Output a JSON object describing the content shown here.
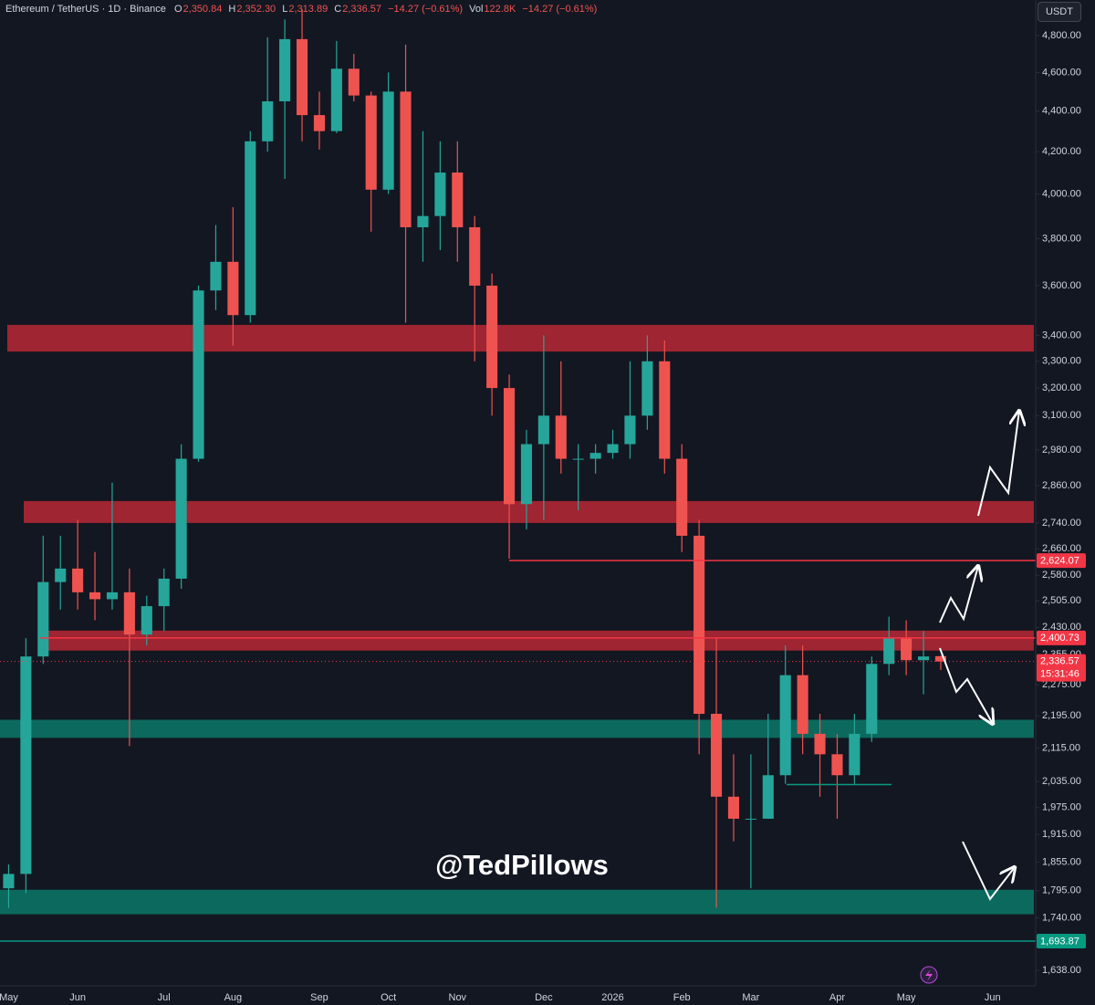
{
  "header": {
    "symbol": "Ethereum / TetherUS · 1D · Binance",
    "ohlc": [
      {
        "key": "O",
        "value": "2,350.84"
      },
      {
        "key": "H",
        "value": "2,352.30"
      },
      {
        "key": "L",
        "value": "2,313.89"
      },
      {
        "key": "C",
        "value": "2,336.57"
      }
    ],
    "change": "−14.27 (−0.61%)",
    "volume": {
      "key": "Vol",
      "value": "122.8K",
      "change": "−14.27 (−0.61%)"
    },
    "currency": "USDT"
  },
  "chart_data": {
    "type": "candlestick",
    "log_scale": true,
    "categories": [
      "May",
      null,
      null,
      null,
      "Jun",
      null,
      null,
      null,
      null,
      "Jul",
      null,
      null,
      null,
      "Aug",
      null,
      null,
      null,
      null,
      "Sep",
      null,
      null,
      null,
      "Oct",
      null,
      null,
      null,
      "Nov",
      null,
      null,
      null,
      null,
      "Dec",
      null,
      null,
      null,
      "2026",
      null,
      null,
      null,
      "Feb",
      null,
      null,
      null,
      "Mar",
      null,
      null,
      null,
      null,
      "Apr",
      null,
      null,
      null,
      "May",
      null,
      null,
      null,
      null,
      "Jun",
      null,
      null
    ],
    "open": [
      1800,
      1830,
      2350,
      2560,
      2600,
      2530,
      2510,
      2530,
      2410,
      2490,
      2570,
      2950,
      3580,
      3700,
      3480,
      4250,
      4450,
      4780,
      4380,
      4300,
      4620,
      4480,
      4020,
      4500,
      3850,
      3900,
      4100,
      3850,
      3600,
      3200,
      2800,
      3000,
      3100,
      2950,
      2950,
      2970,
      3000,
      3100,
      3300,
      2950,
      2700,
      2200,
      2000,
      1950,
      1950,
      2050,
      2300,
      2150,
      2100,
      2050,
      2150,
      2330,
      2400,
      2340,
      2350.84,
      null,
      null,
      null,
      null,
      null
    ],
    "high": [
      1850,
      2400,
      2700,
      2700,
      2750,
      2650,
      2870,
      2600,
      2520,
      2600,
      3000,
      3600,
      3860,
      3940,
      4300,
      4790,
      4890,
      4950,
      4500,
      4770,
      4700,
      4500,
      4600,
      4750,
      4300,
      4250,
      4250,
      3900,
      3650,
      3250,
      3050,
      3400,
      3300,
      3000,
      3000,
      3050,
      3300,
      3400,
      3380,
      3000,
      2750,
      2400,
      2100,
      2100,
      2200,
      2380,
      2380,
      2200,
      2150,
      2200,
      2350,
      2460,
      2450,
      2420,
      2352.3,
      null,
      null,
      null,
      null,
      null
    ],
    "low": [
      1760,
      1790,
      2330,
      2480,
      2480,
      2450,
      2480,
      2120,
      2380,
      2420,
      2540,
      2940,
      3500,
      3360,
      3450,
      4200,
      4070,
      4250,
      4210,
      4290,
      4450,
      3830,
      4000,
      3450,
      3700,
      3750,
      3700,
      3300,
      3100,
      2630,
      2720,
      2750,
      2900,
      2780,
      2900,
      2950,
      2950,
      3050,
      2900,
      2650,
      2100,
      1760,
      1900,
      1800,
      1950,
      2030,
      2100,
      2000,
      1950,
      2030,
      2130,
      2300,
      2300,
      2250,
      2313.89,
      null,
      null,
      null,
      null,
      null
    ],
    "close": [
      1830,
      2350,
      2560,
      2600,
      2530,
      2510,
      2530,
      2410,
      2490,
      2570,
      2950,
      3580,
      3700,
      3480,
      4250,
      4450,
      4780,
      4380,
      4300,
      4620,
      4480,
      4020,
      4500,
      3850,
      3900,
      4100,
      3850,
      3600,
      3200,
      2800,
      3000,
      3100,
      2950,
      2950,
      2970,
      3000,
      3100,
      3300,
      2950,
      2700,
      2200,
      2000,
      1950,
      1950,
      2050,
      2300,
      2150,
      2100,
      2050,
      2150,
      2330,
      2400,
      2340,
      2350,
      2336.57,
      null,
      null,
      null,
      null,
      null
    ],
    "up_color": "#26a69a",
    "down_color": "#ef5350",
    "ylim": [
      1609,
      5000
    ],
    "yticks": [
      {
        "value": 4800,
        "label": "4,800.00"
      },
      {
        "value": 4600,
        "label": "4,600.00"
      },
      {
        "value": 4400,
        "label": "4,400.00"
      },
      {
        "value": 4200,
        "label": "4,200.00"
      },
      {
        "value": 4000,
        "label": "4,000.00"
      },
      {
        "value": 3800,
        "label": "3,800.00"
      },
      {
        "value": 3600,
        "label": "3,600.00"
      },
      {
        "value": 3400,
        "label": "3,400.00"
      },
      {
        "value": 3300,
        "label": "3,300.00"
      },
      {
        "value": 3200,
        "label": "3,200.00"
      },
      {
        "value": 3100,
        "label": "3,100.00"
      },
      {
        "value": 2980,
        "label": "2,980.00"
      },
      {
        "value": 2860,
        "label": "2,860.00"
      },
      {
        "value": 2740,
        "label": "2,740.00"
      },
      {
        "value": 2660,
        "label": "2,660.00"
      },
      {
        "value": 2580,
        "label": "2,580.00"
      },
      {
        "value": 2505,
        "label": "2,505.00"
      },
      {
        "value": 2430,
        "label": "2,430.00"
      },
      {
        "value": 2355,
        "label": "2,355.00"
      },
      {
        "value": 2275,
        "label": "2,275.00"
      },
      {
        "value": 2195,
        "label": "2,195.00"
      },
      {
        "value": 2115,
        "label": "2,115.00"
      },
      {
        "value": 2035,
        "label": "2,035.00"
      },
      {
        "value": 1975,
        "label": "1,975.00"
      },
      {
        "value": 1915,
        "label": "1,915.00"
      },
      {
        "value": 1855,
        "label": "1,855.00"
      },
      {
        "value": 1795,
        "label": "1,795.00"
      },
      {
        "value": 1740,
        "label": "1,740.00"
      },
      {
        "value": 1638,
        "label": "1,638.00"
      }
    ],
    "zones": [
      {
        "low": 3337,
        "high": 3441,
        "color": "#b22833"
      },
      {
        "low": 2740,
        "high": 2810,
        "color": "#b22833"
      },
      {
        "low": 2366,
        "high": 2421,
        "color": "#b22833"
      },
      {
        "low": 2140,
        "high": 2185,
        "color": "#0b7565"
      },
      {
        "low": 1747,
        "high": 1797,
        "color": "#0b7565"
      }
    ],
    "levels": [
      {
        "value": 2624.07,
        "label": "2,624.07",
        "color": "#f23645"
      },
      {
        "value": 2400.73,
        "label": "2,400.73",
        "color": "#f23645"
      },
      {
        "value": 1693.87,
        "label": "1,693.87",
        "color": "#089981"
      },
      {
        "value": 2028,
        "color": "#089981"
      }
    ],
    "last_price": {
      "value": 2336.57,
      "label": "2,336.57",
      "countdown": "15:31:46",
      "color": "#f23645"
    },
    "watermark": "@TedPillows"
  }
}
